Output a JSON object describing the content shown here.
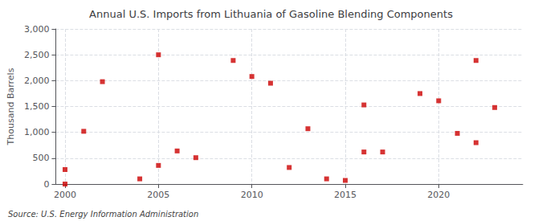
{
  "chart_data": {
    "type": "scatter",
    "title": "Annual U.S. Imports from Lithuania of Gasoline Blending Components",
    "ylabel": "Thousand Barrels",
    "annotations": [
      "Source: U.S. Energy Information Administration"
    ],
    "x": [
      2000,
      2000,
      2001,
      2002,
      2004,
      2005,
      2005,
      2006,
      2007,
      2009,
      2010,
      2011,
      2012,
      2013,
      2014,
      2015,
      2016,
      2016,
      2017,
      2019,
      2020,
      2021,
      2022,
      2022,
      2023
    ],
    "values": [
      0,
      280,
      1020,
      1980,
      100,
      2500,
      360,
      640,
      510,
      2390,
      2080,
      1950,
      320,
      1070,
      100,
      70,
      620,
      1530,
      620,
      1750,
      1610,
      980,
      800,
      2390,
      1480
    ],
    "color": "#cc0000",
    "marker": "square",
    "xlim": [
      1999.5,
      2024.5
    ],
    "xticks": [
      2000,
      2005,
      2010,
      2015,
      2020
    ],
    "ylim": [
      0,
      3000
    ],
    "yticks": [
      0,
      500,
      {
        "value": 1000,
        "label": "1,000"
      },
      {
        "value": 1500,
        "label": "1,500"
      },
      {
        "value": 2000,
        "label": "2,000"
      },
      {
        "value": 2500,
        "label": "2,500"
      },
      {
        "value": 3000,
        "label": "3,000"
      }
    ],
    "grid": true
  }
}
